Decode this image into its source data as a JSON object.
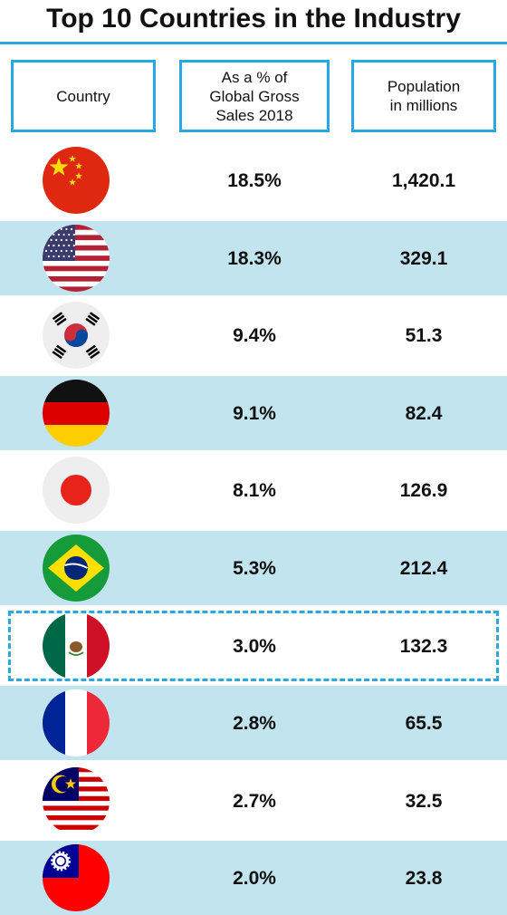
{
  "title": "Top 10 Countries in the Industry",
  "headers": {
    "country": "Country",
    "share": "As a % of\nGlobal Gross\nSales 2018",
    "population": "Population\nin millions"
  },
  "chart_data": {
    "type": "table",
    "title": "Top 10 Countries in the Industry",
    "columns": [
      "Country",
      "As a % of Global Gross Sales 2018",
      "Population in millions"
    ],
    "rows": [
      {
        "flag": "china-flag-icon",
        "share": "18.5%",
        "population": "1,420.1"
      },
      {
        "flag": "usa-flag-icon",
        "share": "18.3%",
        "population": "329.1"
      },
      {
        "flag": "south-korea-flag-icon",
        "share": "9.4%",
        "population": "51.3"
      },
      {
        "flag": "germany-flag-icon",
        "share": "9.1%",
        "population": "82.4"
      },
      {
        "flag": "japan-flag-icon",
        "share": "8.1%",
        "population": "126.9"
      },
      {
        "flag": "brazil-flag-icon",
        "share": "5.3%",
        "population": "212.4"
      },
      {
        "flag": "mexico-flag-icon",
        "share": "3.0%",
        "population": "132.3"
      },
      {
        "flag": "france-flag-icon",
        "share": "2.8%",
        "population": "65.5"
      },
      {
        "flag": "malaysia-flag-icon",
        "share": "2.7%",
        "population": "32.5"
      },
      {
        "flag": "taiwan-flag-icon",
        "share": "2.0%",
        "population": "23.8"
      }
    ],
    "highlighted_row": 6
  },
  "colors": {
    "accent": "#29a8e0",
    "row_shade": "#c2e4ef"
  }
}
